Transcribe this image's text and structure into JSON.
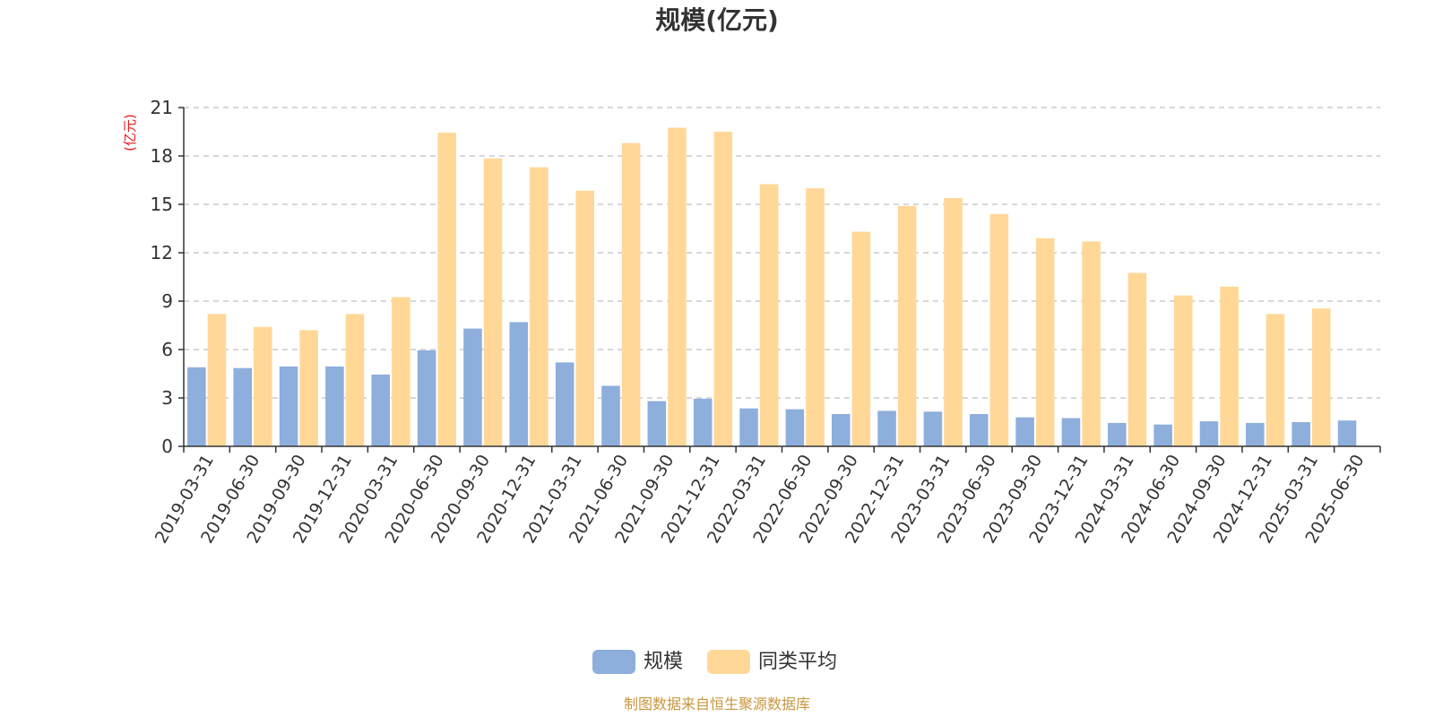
{
  "chart_data": {
    "type": "bar",
    "title": "规模(亿元)",
    "ylabel": "(亿元)",
    "xlabel": "",
    "ylim": [
      0,
      21
    ],
    "yticks": [
      "0",
      "3",
      "6",
      "9",
      "12",
      "15",
      "18",
      "21"
    ],
    "grid": true,
    "legend_position": "bottom",
    "categories": [
      "2019-03-31",
      "2019-06-30",
      "2019-09-30",
      "2019-12-31",
      "2020-03-31",
      "2020-06-30",
      "2020-09-30",
      "2020-12-31",
      "2021-03-31",
      "2021-06-30",
      "2021-09-30",
      "2021-12-31",
      "2022-03-31",
      "2022-06-30",
      "2022-09-30",
      "2022-12-31",
      "2023-03-31",
      "2023-06-30",
      "2023-09-30",
      "2023-12-31",
      "2024-03-31",
      "2024-06-30",
      "2024-09-30",
      "2024-12-31",
      "2025-03-31",
      "2025-06-30"
    ],
    "series": [
      {
        "name": "规模",
        "color": "#8EAEDC",
        "values": [
          4.9,
          4.85,
          4.95,
          4.95,
          4.45,
          5.95,
          7.3,
          7.7,
          5.2,
          3.75,
          2.8,
          2.95,
          2.35,
          2.3,
          2.0,
          2.2,
          2.15,
          2.0,
          1.8,
          1.75,
          1.45,
          1.35,
          1.55,
          1.45,
          1.5,
          1.6
        ]
      },
      {
        "name": "同类平均",
        "color": "#FFD898",
        "values": [
          8.2,
          7.4,
          7.2,
          8.2,
          9.25,
          19.45,
          17.85,
          17.3,
          15.85,
          18.8,
          19.75,
          19.5,
          16.25,
          16.0,
          13.3,
          14.9,
          15.4,
          14.4,
          12.9,
          12.7,
          10.75,
          9.35,
          9.9,
          8.2,
          8.55,
          null
        ]
      }
    ]
  },
  "source": {
    "text": "制图数据来自恒生聚源数据库",
    "color": "#C8963E"
  },
  "colors": {
    "unit_label": "#E8191B",
    "text": "#333333",
    "grid": "#CCCCCC"
  }
}
